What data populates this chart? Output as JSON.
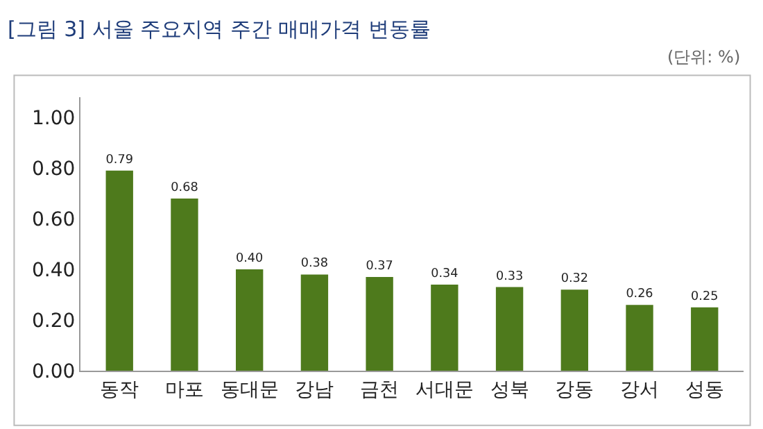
{
  "chart_data": {
    "type": "bar",
    "title": "[그림 3] 서울 주요지역 주간 매매가격 변동률",
    "annotations": [
      "(단위: %)"
    ],
    "categories": [
      "동작",
      "마포",
      "동대문",
      "강남",
      "금천",
      "서대문",
      "성북",
      "강동",
      "강서",
      "성동"
    ],
    "values": [
      0.79,
      0.68,
      0.4,
      0.38,
      0.37,
      0.34,
      0.33,
      0.32,
      0.26,
      0.25
    ],
    "value_labels": [
      "0.79",
      "0.68",
      "0.40",
      "0.38",
      "0.37",
      "0.34",
      "0.33",
      "0.32",
      "0.26",
      "0.25"
    ],
    "color": "#4e7a1c",
    "ylim": [
      0,
      1.08
    ],
    "yticks": [
      {
        "value": 0,
        "label": "0.00"
      },
      {
        "value": 0.2,
        "label": "0.20"
      },
      {
        "value": 0.4,
        "label": "0.40"
      },
      {
        "value": 0.6,
        "label": "0.60"
      },
      {
        "value": 0.8,
        "label": "0.80"
      },
      {
        "value": 1,
        "label": "1.00"
      }
    ],
    "grid": false,
    "legend": false
  }
}
